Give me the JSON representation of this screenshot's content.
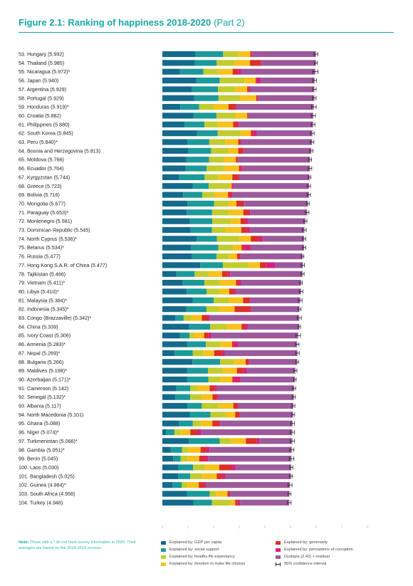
{
  "figure": {
    "title": "Figure 2.1: Ranking of happiness 2018-2020",
    "part": "(Part 2)"
  },
  "note": {
    "bold": "Note:",
    "text": "Those with a * do not have survey information in 2020. Their averages are based on the 2018-2019 surveys."
  },
  "legend": [
    {
      "label": "Explained by: GDP per capita",
      "color": "#136a8c"
    },
    {
      "label": "Explained by: social support",
      "color": "#1b9a9a"
    },
    {
      "label": "Explained by: healthy life expectancy",
      "color": "#c2cc2e"
    },
    {
      "label": "Explained by: freedom to make life choices",
      "color": "#f7c21b"
    },
    {
      "label": "Explained by: generosity",
      "color": "#d93028"
    },
    {
      "label": "Explained by: perceptions of corruption",
      "color": "#d4237a"
    },
    {
      "label": "Dystopia (2.43) + residual",
      "color": "#9c5a9c"
    },
    {
      "label": "95% confidence interval",
      "color": "#222222"
    }
  ],
  "chart_data": {
    "type": "bar",
    "orientation": "horizontal",
    "stacked": true,
    "xlim": [
      0,
      8
    ],
    "xticks": [
      0,
      1,
      2,
      3,
      4,
      5,
      6,
      7,
      8
    ],
    "categories": [
      "53. Hungary (5.992)",
      "54. Thailand (5.985)",
      "55. Nicaragua (5.972)*",
      "56. Japan (5.940)",
      "57. Argentina (5.929)",
      "58. Portugal (5.929)",
      "59. Honduras (5.919)*",
      "60. Croatia (5.882)",
      "61. Philippines (5.880)",
      "62. South Korea (5.845)",
      "63. Peru (5.840)*",
      "64. Bosnia and Herzegovina (5.813)",
      "65. Moldova (5.766)",
      "66. Ecuador (5.764)",
      "67. Kyrgyzstan (5.744)",
      "68. Greece (5.723)",
      "69. Bolivia (5.716)",
      "70. Mongolia (5.677)",
      "71. Paraguay (5.653)*",
      "72. Montenegro (5.581)",
      "73. Dominican Republic (5.545)",
      "74. North Cyprus (5.536)*",
      "75. Belarus (5.534)*",
      "76. Russia (5.477)",
      "77. Hong Kong S.A.R. of China (5.477)",
      "78. Tajikistan (5.466)",
      "79. Vietnam (5.411)*",
      "80. Libya (5.410)*",
      "81. Malaysia (5.384)*",
      "82. Indonesia (5.345)*",
      "83. Congo (Brazzaville) (5.342)*",
      "84. China (5.339)",
      "85. Ivory Coast (5.306)",
      "86. Armenia (5.283)*",
      "87. Nepal (5.269)*",
      "88. Bulgaria (5.266)",
      "89. Maldives (5.198)*",
      "90. Azerbaijan (5.171)*",
      "91. Cameroon (5.142)",
      "92. Senegal (5.132)*",
      "93. Albania (5.117)",
      "94. North Macedonia (5.101)",
      "95. Ghana (5.088)",
      "96. Niger (5.074)*",
      "97. Turkmenistan (5.066)*",
      "98. Gambia (5.051)*",
      "99. Benin (5.045)",
      "100. Laos (5.030)",
      "101. Bangladesh (5.025)",
      "102. Guinea (4.984)*",
      "103. South Africa (4.956)",
      "104. Turkey (4.948)"
    ],
    "series": [
      {
        "name": "Explained by: GDP per capita",
        "values": [
          1.29,
          1.25,
          0.69,
          1.32,
          1.16,
          1.24,
          0.7,
          1.21,
          0.86,
          1.35,
          0.98,
          1.0,
          0.94,
          0.91,
          0.65,
          1.18,
          0.81,
          0.98,
          0.95,
          1.07,
          1.1,
          1.34,
          1.11,
          1.16,
          1.48,
          0.55,
          0.8,
          0.95,
          1.18,
          0.94,
          0.51,
          1.05,
          0.69,
          0.97,
          0.48,
          1.17,
          0.97,
          0.97,
          0.54,
          0.51,
          0.97,
          1.08,
          0.64,
          0.14,
          1.05,
          0.33,
          0.42,
          0.63,
          0.62,
          0.39,
          0.96,
          1.21
        ]
      },
      {
        "name": "Explained by: social support",
        "values": [
          1.08,
          0.87,
          0.91,
          0.92,
          1.01,
          0.95,
          0.73,
          0.9,
          0.78,
          0.81,
          0.85,
          0.9,
          0.88,
          0.82,
          1.0,
          0.63,
          0.75,
          1.04,
          0.99,
          0.88,
          0.83,
          0.79,
          1.07,
          0.95,
          0.88,
          0.71,
          0.84,
          0.78,
          0.82,
          0.78,
          0.32,
          0.82,
          0.37,
          0.73,
          0.71,
          1.08,
          0.81,
          0.83,
          0.55,
          0.58,
          0.57,
          0.8,
          0.55,
          0.33,
          1.19,
          0.44,
          0.29,
          0.57,
          0.47,
          0.37,
          0.89,
          0.72
        ]
      },
      {
        "name": "Explained by: healthy life expectancy",
        "values": [
          0.58,
          0.69,
          0.59,
          0.96,
          0.67,
          0.84,
          0.57,
          0.75,
          0.52,
          0.89,
          0.62,
          0.66,
          0.58,
          0.67,
          0.51,
          0.82,
          0.48,
          0.55,
          0.66,
          0.72,
          0.53,
          0.88,
          0.58,
          0.48,
          1.0,
          0.55,
          0.6,
          0.51,
          0.6,
          0.49,
          0.28,
          0.64,
          0.16,
          0.56,
          0.41,
          0.56,
          0.57,
          0.45,
          0.27,
          0.41,
          0.65,
          0.59,
          0.32,
          0.23,
          0.42,
          0.25,
          0.27,
          0.44,
          0.47,
          0.22,
          0.24,
          0.73
        ]
      },
      {
        "name": "Explained by: freedom to make life choices",
        "values": [
          0.48,
          0.61,
          0.55,
          0.44,
          0.47,
          0.63,
          0.58,
          0.45,
          0.6,
          0.4,
          0.51,
          0.4,
          0.47,
          0.59,
          0.57,
          0.07,
          0.52,
          0.32,
          0.56,
          0.38,
          0.62,
          0.44,
          0.33,
          0.32,
          0.45,
          0.52,
          0.63,
          0.37,
          0.55,
          0.61,
          0.43,
          0.58,
          0.41,
          0.46,
          0.42,
          0.44,
          0.56,
          0.48,
          0.48,
          0.46,
          0.58,
          0.37,
          0.44,
          0.39,
          0.6,
          0.47,
          0.46,
          0.58,
          0.56,
          0.44,
          0.45,
          0.18
        ]
      },
      {
        "name": "Explained by: generosity",
        "values": [
          0.06,
          0.41,
          0.21,
          0.03,
          0.07,
          0.06,
          0.28,
          0.04,
          0.17,
          0.08,
          0.08,
          0.2,
          0.07,
          0.07,
          0.24,
          0.03,
          0.12,
          0.28,
          0.2,
          0.2,
          0.21,
          0.29,
          0.08,
          0.09,
          0.24,
          0.22,
          0.13,
          0.17,
          0.25,
          0.61,
          0.21,
          0.13,
          0.17,
          0.07,
          0.31,
          0.12,
          0.25,
          0.06,
          0.19,
          0.16,
          0.16,
          0.17,
          0.27,
          0.27,
          0.43,
          0.22,
          0.2,
          0.46,
          0.21,
          0.22,
          0.07,
          0.1
        ]
      },
      {
        "name": "Explained by: perceptions of corruption",
        "values": [
          0.03,
          0.04,
          0.13,
          0.17,
          0.05,
          0.02,
          0.04,
          0.01,
          0.06,
          0.15,
          0.03,
          0.03,
          0.01,
          0.07,
          0.03,
          0.05,
          0.06,
          0.03,
          0.06,
          0.1,
          0.13,
          0.18,
          0.26,
          0.05,
          0.36,
          0.11,
          0.07,
          0.08,
          0.04,
          0.03,
          0.1,
          0.1,
          0.12,
          0.18,
          0.1,
          0.02,
          0.13,
          0.26,
          0.08,
          0.07,
          0.03,
          0.04,
          0.05,
          0.16,
          0.09,
          0.13,
          0.14,
          0.19,
          0.13,
          0.07,
          0.04,
          0.09
        ]
      },
      {
        "name": "Dystopia (2.43) + residual",
        "values": [
          2.47,
          2.12,
          2.89,
          2.1,
          2.5,
          2.19,
          3.01,
          2.53,
          2.89,
          2.17,
          2.77,
          2.62,
          2.81,
          2.63,
          2.74,
          2.94,
          2.98,
          2.48,
          2.23,
          2.23,
          2.12,
          1.61,
          2.1,
          2.42,
          1.07,
          2.81,
          2.34,
          2.55,
          1.94,
          1.89,
          3.49,
          2.02,
          3.38,
          2.29,
          2.84,
          1.87,
          1.9,
          2.12,
          3.03,
          2.94,
          2.15,
          2.05,
          2.81,
          3.55,
          1.29,
          3.21,
          3.26,
          2.16,
          2.56,
          3.27,
          2.31,
          1.92
        ]
      }
    ],
    "ci_halfwidth": [
      0.07,
      0.06,
      0.1,
      0.07,
      0.07,
      0.07,
      0.09,
      0.08,
      0.07,
      0.07,
      0.07,
      0.06,
      0.06,
      0.07,
      0.05,
      0.06,
      0.06,
      0.05,
      0.07,
      0.06,
      0.07,
      0.06,
      0.06,
      0.05,
      0.06,
      0.06,
      0.05,
      0.07,
      0.07,
      0.06,
      0.08,
      0.05,
      0.09,
      0.07,
      0.07,
      0.05,
      0.06,
      0.05,
      0.06,
      0.06,
      0.06,
      0.06,
      0.07,
      0.08,
      0.08,
      0.08,
      0.09,
      0.06,
      0.06,
      0.08,
      0.06,
      0.07
    ],
    "legend_position": "bottom",
    "grid": false
  }
}
